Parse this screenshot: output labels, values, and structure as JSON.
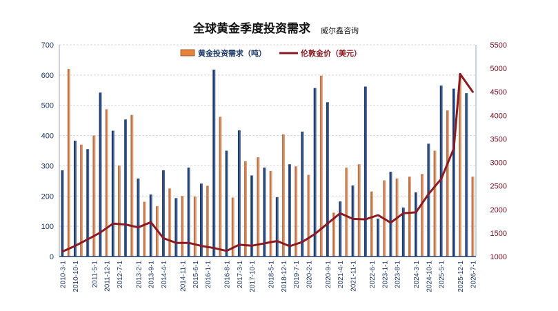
{
  "chart_data": {
    "type": "bar",
    "title": "全球黄金季度投资需求",
    "subtitle": "威尔鑫咨询",
    "legend": [
      "黄金投资需求（吨）",
      "伦敦金价（美元）"
    ],
    "legend_placement": "top-center",
    "x_tick_labels": [
      "2010-3-1",
      "2010-10-1",
      "2011-5-1",
      "2011-12-1",
      "2012-7-1",
      "2013-2-1",
      "2013-9-1",
      "2014-4-1",
      "2014-11-1",
      "2015-6-1",
      "2016-1-1",
      "2016-8-1",
      "2017-3-1",
      "2017-10-1",
      "2018-5-1",
      "2018-12-1",
      "2019-7-1",
      "2020-2-1",
      "2020-9-1",
      "2021-4-1",
      "2021-11-1",
      "2022-6-1",
      "2023-1-1",
      "2023-8-1",
      "2024-3-1",
      "2024-10-1",
      "2025-5-1",
      "2025-12-1",
      "2026-7-1"
    ],
    "y_left": {
      "ylim": [
        0,
        700
      ],
      "ticks": [
        0,
        100,
        200,
        300,
        400,
        500,
        600,
        700
      ]
    },
    "y_right": {
      "ylim": [
        1000,
        5500
      ],
      "ticks": [
        1000,
        1500,
        2000,
        2500,
        3000,
        3500,
        4000,
        4500,
        5000,
        5500
      ]
    },
    "grid": true,
    "series": [
      {
        "name": "黄金投资需求（吨）",
        "type": "bar",
        "axis": "left",
        "color": "#e8813a",
        "values": [
          285,
          620,
          383,
          370,
          355,
          400,
          542,
          487,
          416,
          301,
          453,
          468,
          258,
          181,
          205,
          166,
          285,
          225,
          193,
          200,
          294,
          198,
          241,
          234,
          618,
          462,
          350,
          195,
          417,
          315,
          268,
          328,
          294,
          283,
          196,
          404,
          305,
          298,
          413,
          270,
          557,
          598,
          510,
          145,
          182,
          294,
          235,
          305,
          562,
          215,
          125,
          252,
          280,
          258,
          162,
          264,
          212,
          273,
          373,
          350,
          565,
          483,
          555,
          604,
          540,
          264
        ]
      },
      {
        "name": "伦敦金价（美元）",
        "type": "line",
        "axis": "right",
        "color": "#8b1a22",
        "x_index": [
          0,
          2,
          4,
          6,
          8,
          10,
          12,
          14,
          16,
          18,
          20,
          22,
          24,
          26,
          28,
          30,
          32,
          34,
          36,
          38,
          40,
          42,
          44,
          46,
          48,
          50,
          52,
          54,
          56,
          58,
          60,
          62,
          63,
          65
        ],
        "values": [
          1105,
          1225,
          1365,
          1510,
          1700,
          1680,
          1620,
          1730,
          1390,
          1290,
          1290,
          1225,
          1180,
          1120,
          1250,
          1230,
          1280,
          1330,
          1220,
          1310,
          1480,
          1700,
          1920,
          1800,
          1790,
          1880,
          1720,
          1920,
          1940,
          2330,
          2650,
          3300,
          4880,
          4500
        ]
      }
    ]
  }
}
